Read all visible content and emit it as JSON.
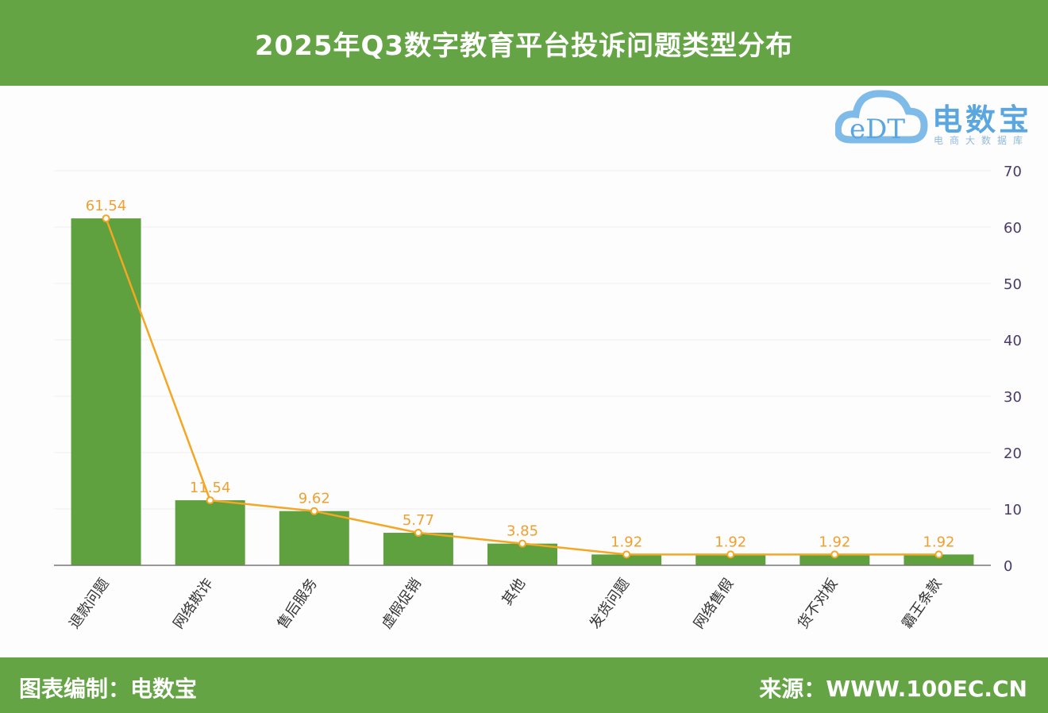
{
  "header": {
    "title": "2025年Q3数字教育平台投诉问题类型分布"
  },
  "logo": {
    "mark": "eDT",
    "brand": "电数宝",
    "sub": "电商大数据库"
  },
  "footer": {
    "left": "图表编制：电数宝",
    "right": "来源：WWW.100EC.CN"
  },
  "colors": {
    "bar": "#5fa03f",
    "line": "#f5a623",
    "label": "#f0a030",
    "axis": "#4a3a6a"
  },
  "chart_data": {
    "type": "bar",
    "title": "2025年Q3数字教育平台投诉问题类型分布",
    "categories": [
      "退款问题",
      "网络欺诈",
      "售后服务",
      "虚假促销",
      "其他",
      "发货问题",
      "网络售假",
      "货不对板",
      "霸王条款"
    ],
    "values": [
      61.54,
      11.54,
      9.62,
      5.77,
      3.85,
      1.92,
      1.92,
      1.92,
      1.92
    ],
    "value_labels": [
      "61.54",
      "11.54",
      "9.62",
      "5.77",
      "3.85",
      "1.92",
      "1.92",
      "1.92",
      "1.92"
    ],
    "line_overlay": true,
    "ylim": [
      0,
      70
    ],
    "yticks": [
      "0",
      "10",
      "20",
      "30",
      "40",
      "50",
      "60",
      "70"
    ],
    "yaxis_position": "right",
    "grid": true,
    "xlabel": "",
    "ylabel": ""
  }
}
